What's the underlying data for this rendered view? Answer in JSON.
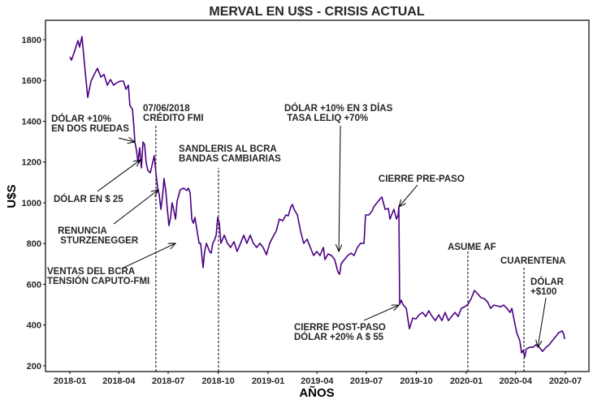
{
  "chart_data": {
    "type": "line",
    "title": "MERVAL EN U$S - CRISIS ACTUAL",
    "xlabel": "AÑOS",
    "ylabel": "U$S",
    "line_color": "#4b0082",
    "x_origin_year": 2018,
    "x_units": "years since 2018-01-01",
    "xlim": [
      -0.125,
      2.62
    ],
    "ylim": [
      155,
      1880
    ],
    "grid": false,
    "x_ticks": [
      {
        "value": 0.0,
        "label": "2018-01"
      },
      {
        "value": 0.247,
        "label": "2018-04"
      },
      {
        "value": 0.496,
        "label": "2018-07"
      },
      {
        "value": 0.748,
        "label": "2018-10"
      },
      {
        "value": 1.0,
        "label": "2019-01"
      },
      {
        "value": 1.247,
        "label": "2019-04"
      },
      {
        "value": 1.496,
        "label": "2019-07"
      },
      {
        "value": 1.748,
        "label": "2019-10"
      },
      {
        "value": 2.0,
        "label": "2020-01"
      },
      {
        "value": 2.249,
        "label": "2020-04"
      },
      {
        "value": 2.5,
        "label": "2020-07"
      }
    ],
    "y_ticks": [
      {
        "value": 200,
        "label": "200"
      },
      {
        "value": 400,
        "label": "400"
      },
      {
        "value": 600,
        "label": "600"
      },
      {
        "value": 800,
        "label": "800"
      },
      {
        "value": 1000,
        "label": "1000"
      },
      {
        "value": 1200,
        "label": "1200"
      },
      {
        "value": 1400,
        "label": "1400"
      },
      {
        "value": 1600,
        "label": "1600"
      },
      {
        "value": 1800,
        "label": "1800"
      }
    ],
    "series": [
      {
        "name": "MERVAL U$S",
        "x": [
          0,
          0.008,
          0.025,
          0.041,
          0.049,
          0.061,
          0.074,
          0.09,
          0.107,
          0.123,
          0.139,
          0.156,
          0.172,
          0.189,
          0.205,
          0.221,
          0.238,
          0.254,
          0.27,
          0.283,
          0.295,
          0.303,
          0.316,
          0.324,
          0.328,
          0.336,
          0.344,
          0.352,
          0.361,
          0.369,
          0.377,
          0.385,
          0.393,
          0.406,
          0.418,
          0.426,
          0.434,
          0.443,
          0.451,
          0.459,
          0.467,
          0.475,
          0.484,
          0.492,
          0.5,
          0.508,
          0.516,
          0.525,
          0.533,
          0.541,
          0.557,
          0.574,
          0.59,
          0.598,
          0.607,
          0.615,
          0.623,
          0.631,
          0.639,
          0.652,
          0.66,
          0.672,
          0.68,
          0.689,
          0.697,
          0.705,
          0.713,
          0.721,
          0.73,
          0.738,
          0.746,
          0.754,
          0.762,
          0.779,
          0.795,
          0.811,
          0.828,
          0.844,
          0.861,
          0.877,
          0.893,
          0.91,
          0.926,
          0.943,
          0.959,
          0.975,
          0.992,
          1.008,
          1.025,
          1.041,
          1.057,
          1.074,
          1.09,
          1.102,
          1.115,
          1.123,
          1.131,
          1.148,
          1.164,
          1.18,
          1.197,
          1.213,
          1.23,
          1.246,
          1.262,
          1.279,
          1.287,
          1.303,
          1.32,
          1.336,
          1.352,
          1.361,
          1.369,
          1.385,
          1.402,
          1.418,
          1.434,
          1.451,
          1.467,
          1.484,
          1.492,
          1.508,
          1.525,
          1.533,
          1.549,
          1.566,
          1.574,
          1.582,
          1.59,
          1.607,
          1.615,
          1.623,
          1.635,
          1.648,
          1.656,
          1.66,
          1.664,
          1.672,
          1.68,
          1.697,
          1.713,
          1.73,
          1.746,
          1.762,
          1.779,
          1.795,
          1.811,
          1.828,
          1.844,
          1.861,
          1.877,
          1.893,
          1.91,
          1.926,
          1.943,
          1.959,
          1.975,
          1.992,
          2.008,
          2.025,
          2.041,
          2.057,
          2.074,
          2.09,
          2.107,
          2.123,
          2.139,
          2.156,
          2.172,
          2.189,
          2.205,
          2.221,
          2.23,
          2.238,
          2.254,
          2.27,
          2.279,
          2.287,
          2.295,
          2.303,
          2.32,
          2.336,
          2.352,
          2.369,
          2.385,
          2.402,
          2.418,
          2.434,
          2.451,
          2.467,
          2.484,
          2.492,
          2.496
        ],
        "y": [
          1716,
          1700,
          1748,
          1796,
          1764,
          1816,
          1677,
          1517,
          1597,
          1630,
          1660,
          1617,
          1630,
          1577,
          1605,
          1577,
          1590,
          1597,
          1597,
          1557,
          1577,
          1478,
          1458,
          1358,
          1298,
          1258,
          1199,
          1270,
          1171,
          1298,
          1286,
          1199,
          1159,
          1147,
          1199,
          1231,
          1147,
          1072,
          1040,
          968,
          1024,
          1119,
          1060,
          968,
          888,
          928,
          1000,
          960,
          920,
          1008,
          1064,
          1072,
          1060,
          1072,
          1048,
          920,
          900,
          928,
          880,
          801,
          801,
          682,
          761,
          801,
          781,
          761,
          753,
          801,
          817,
          841,
          928,
          900,
          801,
          841,
          801,
          781,
          809,
          761,
          801,
          841,
          801,
          841,
          801,
          781,
          801,
          781,
          745,
          801,
          833,
          861,
          920,
          912,
          940,
          936,
          980,
          992,
          968,
          940,
          861,
          801,
          821,
          781,
          741,
          761,
          741,
          781,
          721,
          749,
          741,
          721,
          661,
          649,
          701,
          721,
          741,
          753,
          741,
          781,
          801,
          801,
          940,
          940,
          960,
          980,
          1000,
          1020,
          1028,
          1000,
          968,
          972,
          920,
          940,
          968,
          920,
          940,
          980,
          502,
          522,
          502,
          482,
          382,
          434,
          430,
          450,
          462,
          442,
          470,
          442,
          422,
          450,
          422,
          462,
          422,
          442,
          462,
          442,
          482,
          490,
          502,
          530,
          570,
          554,
          534,
          530,
          514,
          482,
          498,
          494,
          490,
          498,
          482,
          462,
          482,
          442,
          363,
          323,
          263,
          275,
          243,
          283,
          291,
          291,
          303,
          291,
          271,
          291,
          303,
          323,
          343,
          363,
          371,
          355,
          331
        ]
      }
    ],
    "vlines": [
      {
        "x": 0.434,
        "ytop": 1386
      },
      {
        "x": 0.75,
        "ytop": 1171
      },
      {
        "x": 2.008,
        "ytop": 761
      },
      {
        "x": 2.291,
        "ytop": 689
      }
    ],
    "annotations": [
      {
        "lines": [
          "DÓLAR +10%",
          "EN DOS RUEDAS"
        ],
        "text_at": [
          -0.094,
          1434
        ],
        "arrow_from": [
          0.246,
          1318
        ],
        "arrow_to": [
          0.328,
          1298
        ]
      },
      {
        "lines": [
          "DÓLAR EN $ 25"
        ],
        "text_at": [
          -0.082,
          1040
        ],
        "arrow_from": [
          0.139,
          1056
        ],
        "arrow_to": [
          0.357,
          1211
        ]
      },
      {
        "lines": [
          "RENUNCIA",
          " STURZENEGGER"
        ],
        "text_at": [
          -0.061,
          885
        ],
        "arrow_from": [
          0.221,
          896
        ],
        "arrow_to": [
          0.447,
          1064
        ]
      },
      {
        "lines": [
          "VENTAS DEL BCRA",
          "TENSIÓN CAPUTO-FMI"
        ],
        "text_at": [
          -0.115,
          685
        ],
        "arrow_from": [
          0.27,
          681
        ],
        "arrow_to": [
          0.533,
          801
        ]
      },
      {
        "lines": [
          "07/06/2018",
          "CRÉDITO FMI"
        ],
        "text_at": [
          0.369,
          1486
        ]
      },
      {
        "lines": [
          "SANDLERIS AL BCRA",
          "BANDAS CAMBIARIAS"
        ],
        "text_at": [
          0.549,
          1286
        ]
      },
      {
        "lines": [
          "DÓLAR +10% EN 3 DÍAS",
          " TASA LELIQ +70%"
        ],
        "text_at": [
          1.082,
          1486
        ],
        "arrow_from": [
          1.365,
          1378
        ],
        "arrow_to": [
          1.357,
          761
        ]
      },
      {
        "lines": [
          "CIERRE PRE-PASO"
        ],
        "text_at": [
          1.557,
          1139
        ],
        "arrow_from": [
          1.754,
          1087
        ],
        "arrow_to": [
          1.66,
          980
        ]
      },
      {
        "lines": [
          "CIERRE POST-PASO",
          "DÓLAR +20% A $ 55"
        ],
        "text_at": [
          1.131,
          411
        ],
        "arrow_from": [
          1.484,
          423
        ],
        "arrow_to": [
          1.66,
          498
        ]
      },
      {
        "lines": [
          "ASUME AF"
        ],
        "text_at": [
          1.906,
          805
        ]
      },
      {
        "lines": [
          "CUARENTENA"
        ],
        "text_at": [
          2.172,
          737
        ]
      },
      {
        "lines": [
          "DÓLAR",
          "+$100"
        ],
        "text_at": [
          2.324,
          634
        ],
        "arrow_from": [
          2.402,
          534
        ],
        "arrow_to": [
          2.361,
          291
        ]
      }
    ]
  }
}
